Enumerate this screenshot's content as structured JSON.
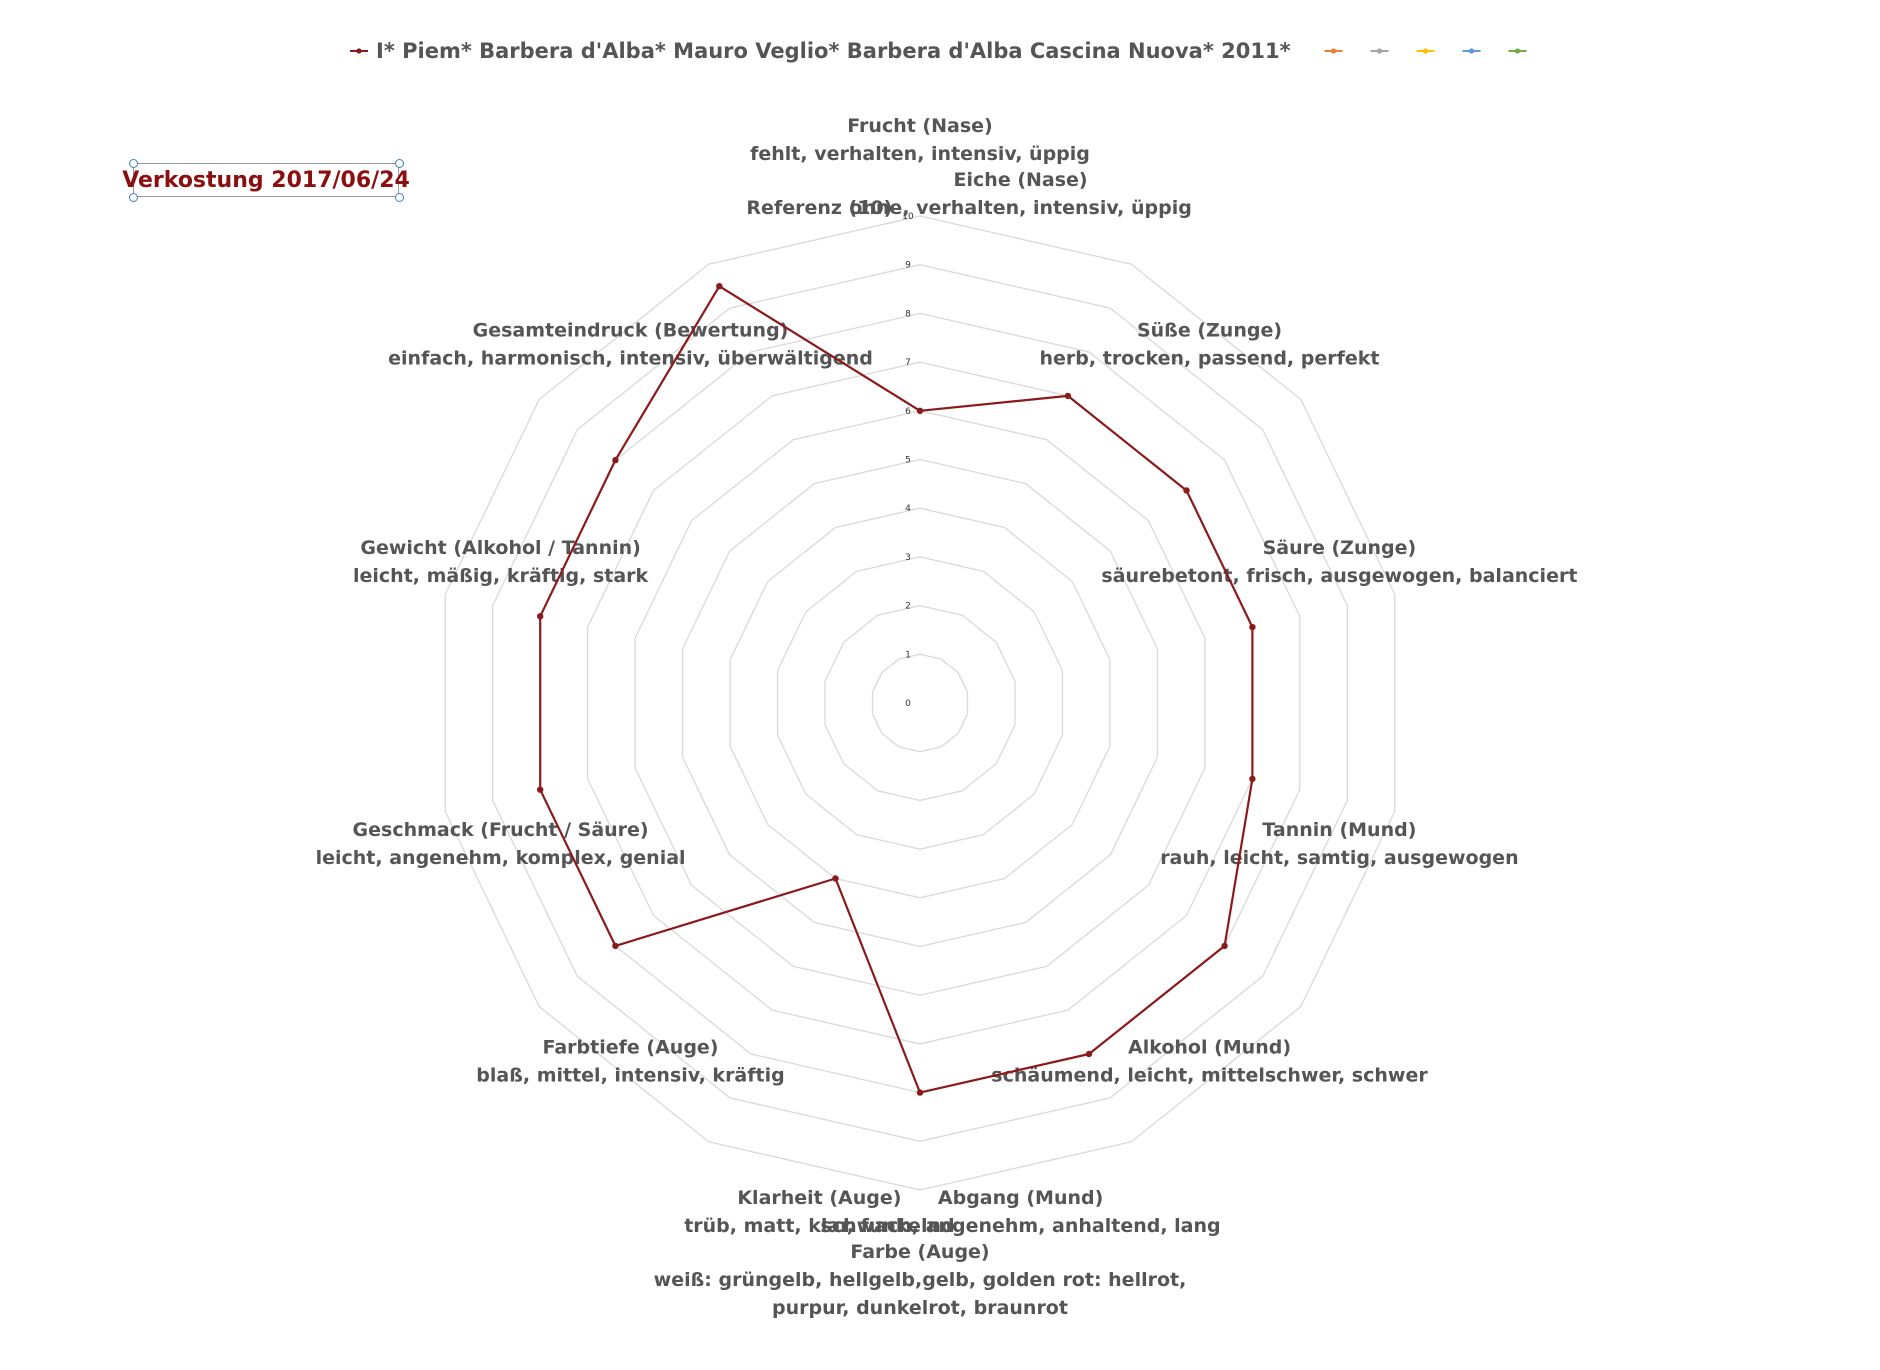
{
  "annotation": {
    "text": "Verkostung 2017/06/24"
  },
  "chart_data": {
    "type": "radar",
    "rlim": [
      0,
      10
    ],
    "ticks": [
      0,
      1,
      2,
      3,
      4,
      5,
      6,
      7,
      8,
      9,
      10
    ],
    "grid": true,
    "legend_position": "top",
    "axes": [
      {
        "label": "Frucht (Nase)",
        "sub": [
          "fehlt, verhalten, intensiv, üppig"
        ]
      },
      {
        "label": "Eiche (Nase)",
        "sub": [
          "ohne, verhalten, intensiv, üppig"
        ]
      },
      {
        "label": "Süße (Zunge)",
        "sub": [
          "herb, trocken, passend, perfekt"
        ]
      },
      {
        "label": "Säure (Zunge)",
        "sub": [
          "säurebetont, frisch, ausgewogen, balanciert"
        ]
      },
      {
        "label": "Tannin (Mund)",
        "sub": [
          "rauh, leicht, samtig, ausgewogen"
        ]
      },
      {
        "label": "Alkohol (Mund)",
        "sub": [
          "schäumend, leicht, mittelschwer, schwer"
        ]
      },
      {
        "label": "Abgang (Mund)",
        "sub": [
          "schwach, angenehm, anhaltend, lang"
        ]
      },
      {
        "label": "Farbe  (Auge)",
        "sub": [
          "weiß: grüngelb, hellgelb,gelb, golden  rot: hellrot,",
          "purpur, dunkelrot, braunrot"
        ]
      },
      {
        "label": "Klarheit (Auge)",
        "sub": [
          "trüb, matt, klar, funkelnd"
        ]
      },
      {
        "label": "Farbtiefe (Auge)",
        "sub": [
          "blaß, mittel, intensiv, kräftig"
        ]
      },
      {
        "label": "Geschmack (Frucht / Säure)",
        "sub": [
          "leicht, angenehm, komplex, genial"
        ]
      },
      {
        "label": "Gewicht (Alkohol / Tannin)",
        "sub": [
          "leicht, mäßig, kräftig, stark"
        ]
      },
      {
        "label": "Gesamteindruck (Bewertung)",
        "sub": [
          "einfach, harmonisch, intensiv, überwältigend"
        ]
      },
      {
        "label": "Referenz (10)",
        "sub": []
      }
    ],
    "series": [
      {
        "name": "I* Piem* Barbera d'Alba* Mauro Veglio* Barbera d'Alba Cascina Nuova* 2011*",
        "color": "#8b1a1a",
        "values": [
          6,
          7,
          7,
          7,
          7,
          8,
          8,
          8,
          4,
          8,
          8,
          8,
          8,
          9.5
        ]
      },
      {
        "name": "",
        "color": "#ed7d31",
        "values": []
      },
      {
        "name": "",
        "color": "#a5a5a5",
        "values": []
      },
      {
        "name": "",
        "color": "#ffc000",
        "values": []
      },
      {
        "name": "",
        "color": "#5b9bd5",
        "values": []
      },
      {
        "name": "",
        "color": "#70ad47",
        "values": []
      }
    ]
  }
}
